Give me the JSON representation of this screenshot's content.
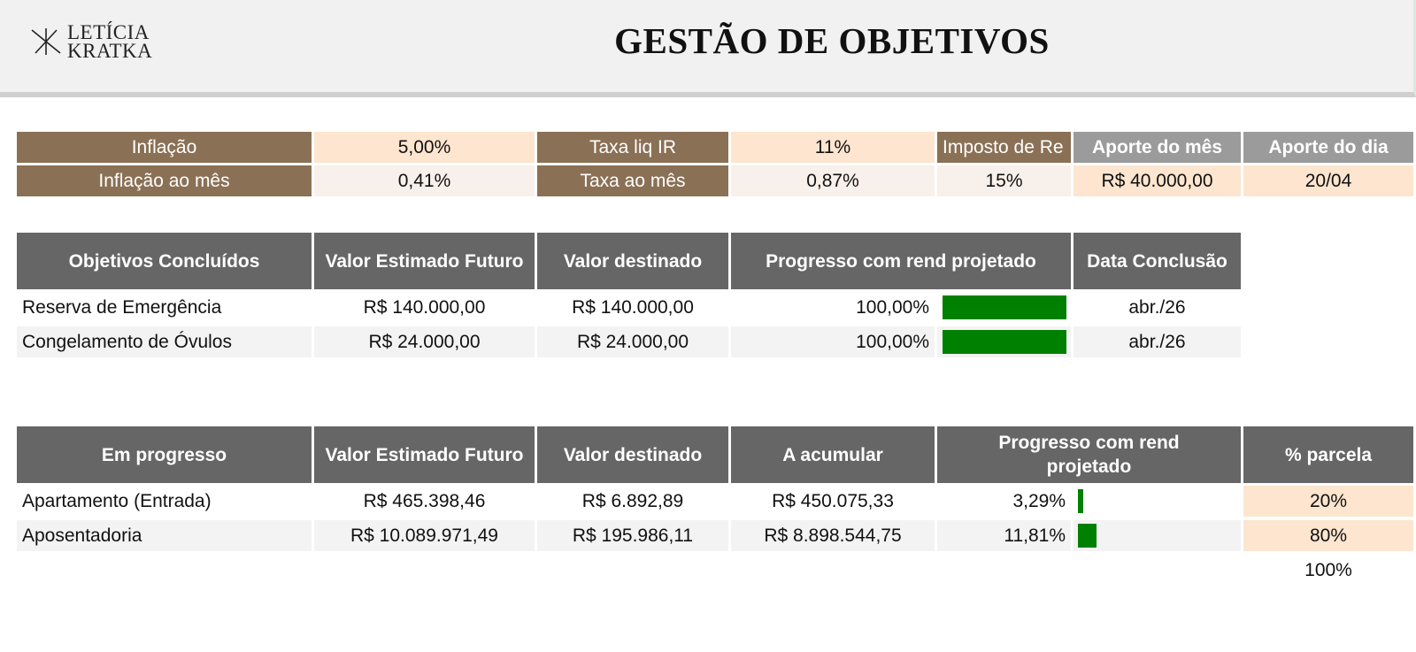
{
  "header": {
    "logo_line1": "LETÍCIA",
    "logo_line2": "KRATKA",
    "title": "GESTÃO DE OBJETIVOS"
  },
  "params": {
    "inflacao_label": "Inflação",
    "inflacao_value": "5,00%",
    "inflacao_mes_label": "Inflação ao mês",
    "inflacao_mes_value": "0,41%",
    "taxa_ir_label": "Taxa liq IR",
    "taxa_ir_value": "11%",
    "taxa_mes_label": "Taxa ao mês",
    "taxa_mes_value": "0,87%",
    "imposto_label": "Imposto de Re",
    "imposto_value": "15%",
    "aporte_mes_label": "Aporte do mês",
    "aporte_mes_value": "R$ 40.000,00",
    "aporte_dia_label": "Aporte do dia",
    "aporte_dia_value": "20/04"
  },
  "concluidos": {
    "headers": [
      "Objetivos Concluídos",
      "Valor Estimado Futuro",
      "Valor destinado",
      "Progresso com rend projetado",
      "Data Conclusão"
    ],
    "rows": [
      {
        "name": "Reserva de Emergência",
        "valor_futuro": "R$ 140.000,00",
        "valor_destinado": "R$ 140.000,00",
        "progresso": "100,00%",
        "progress_fraction": 1.0,
        "data": "abr./26"
      },
      {
        "name": "Congelamento de Óvulos",
        "valor_futuro": "R$ 24.000,00",
        "valor_destinado": "R$ 24.000,00",
        "progresso": "100,00%",
        "progress_fraction": 1.0,
        "data": "abr./26"
      }
    ]
  },
  "em_progresso": {
    "headers": [
      "Em progresso",
      "Valor Estimado Futuro",
      "Valor destinado",
      "A acumular",
      "Progresso com rend projetado",
      "% parcela"
    ],
    "rows": [
      {
        "name": "Apartamento (Entrada)",
        "valor_futuro": "R$ 465.398,46",
        "valor_destinado": "R$ 6.892,89",
        "a_acumular": "R$ 450.075,33",
        "progresso": "3,29%",
        "progress_fraction": 0.0329,
        "parcela": "20%"
      },
      {
        "name": "Aposentadoria",
        "valor_futuro": "R$ 10.089.971,49",
        "valor_destinado": "R$ 195.986,11",
        "a_acumular": "R$ 8.898.544,75",
        "progresso": "11,81%",
        "progress_fraction": 0.1181,
        "parcela": "80%"
      }
    ],
    "total_parcela": "100%"
  },
  "colors": {
    "param_label": "#8a7055",
    "param_peach": "#fde5cf",
    "header_grey": "#666666",
    "progress_green": "#008000"
  }
}
